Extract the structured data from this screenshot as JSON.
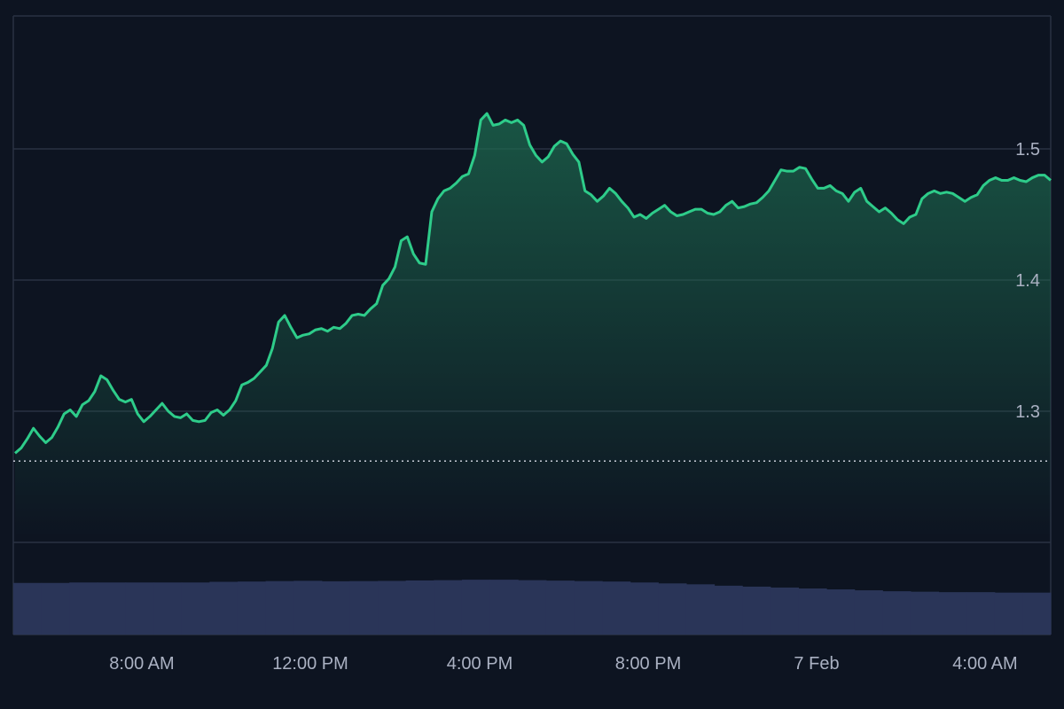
{
  "colors": {
    "background": "#0d1421",
    "line": "#2ecc8a",
    "area_top": "#1d6b50",
    "grid": "#2a3142",
    "volume": "#2a3558",
    "baseline": "#c9ced8",
    "tick_text": "#aab1c2"
  },
  "chart_data": [
    {
      "type": "area",
      "title": "",
      "xlabel": "",
      "ylabel": "",
      "x_ticks": [
        "8:00 AM",
        "12:00 PM",
        "4:00 PM",
        "8:00 PM",
        "7 Feb",
        "4:00 AM"
      ],
      "y_ticks": [
        "1.3",
        "1.4",
        "1.5"
      ],
      "y_tick_values": [
        1.3,
        1.4,
        1.5
      ],
      "ylim": [
        1.235,
        1.6
      ],
      "grid": true,
      "legend": "none",
      "baseline_value": 1.262,
      "series": [
        {
          "values": [
            1.268,
            1.272,
            1.279,
            1.287,
            1.281,
            1.276,
            1.28,
            1.288,
            1.298,
            1.301,
            1.296,
            1.305,
            1.308,
            1.315,
            1.327,
            1.324,
            1.316,
            1.309,
            1.307,
            1.309,
            1.298,
            1.292,
            1.296,
            1.301,
            1.306,
            1.3,
            1.296,
            1.295,
            1.298,
            1.293,
            1.292,
            1.293,
            1.299,
            1.301,
            1.297,
            1.301,
            1.308,
            1.32,
            1.322,
            1.325,
            1.33,
            1.335,
            1.348,
            1.368,
            1.373,
            1.364,
            1.356,
            1.358,
            1.359,
            1.362,
            1.363,
            1.361,
            1.364,
            1.363,
            1.367,
            1.373,
            1.374,
            1.373,
            1.378,
            1.382,
            1.396,
            1.401,
            1.41,
            1.43,
            1.433,
            1.42,
            1.413,
            1.412,
            1.452,
            1.462,
            1.468,
            1.47,
            1.474,
            1.479,
            1.481,
            1.495,
            1.522,
            1.527,
            1.518,
            1.519,
            1.522,
            1.52,
            1.522,
            1.518,
            1.503,
            1.495,
            1.49,
            1.494,
            1.502,
            1.506,
            1.504,
            1.496,
            1.49,
            1.468,
            1.465,
            1.46,
            1.464,
            1.47,
            1.466,
            1.46,
            1.455,
            1.448,
            1.45,
            1.447,
            1.451,
            1.454,
            1.457,
            1.452,
            1.449,
            1.45,
            1.452,
            1.454,
            1.454,
            1.451,
            1.45,
            1.452,
            1.457,
            1.46,
            1.455,
            1.456,
            1.458,
            1.459,
            1.463,
            1.468,
            1.476,
            1.484,
            1.483,
            1.483,
            1.486,
            1.485,
            1.477,
            1.47,
            1.47,
            1.472,
            1.468,
            1.466,
            1.46,
            1.467,
            1.47,
            1.46,
            1.456,
            1.452,
            1.455,
            1.451,
            1.446,
            1.443,
            1.448,
            1.45,
            1.462,
            1.466,
            1.468,
            1.466,
            1.467,
            1.466,
            1.463,
            1.46,
            1.463,
            1.465,
            1.472,
            1.476,
            1.478,
            1.476,
            1.476,
            1.478,
            1.476,
            1.475,
            1.478,
            1.48,
            1.48,
            1.476
          ]
        }
      ]
    },
    {
      "type": "bar",
      "title": "",
      "ylim": [
        0,
        1
      ],
      "grid": false,
      "series": [
        {
          "values": [
            0.56,
            0.56,
            0.565,
            0.565,
            0.565,
            0.565,
            0.565,
            0.572,
            0.575,
            0.58,
            0.583,
            0.578,
            0.58,
            0.582,
            0.587,
            0.59,
            0.595,
            0.595,
            0.59,
            0.585,
            0.58,
            0.575,
            0.565,
            0.555,
            0.545,
            0.53,
            0.52,
            0.51,
            0.5,
            0.49,
            0.48,
            0.47,
            0.465,
            0.46,
            0.46,
            0.455,
            0.455
          ]
        }
      ]
    }
  ]
}
